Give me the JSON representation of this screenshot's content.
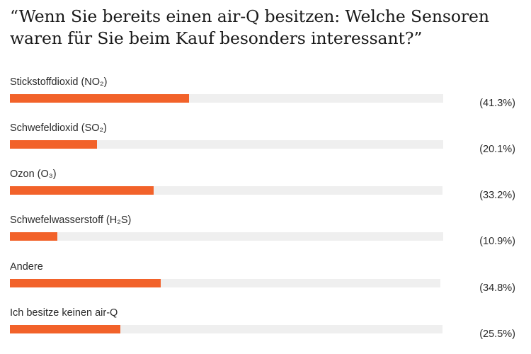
{
  "chart_data": {
    "type": "bar",
    "title": "“Wenn Sie bereits einen air-Q besitzen: Welche Sensoren waren für Sie beim Kauf besonders interessant?”",
    "categories": [
      "Stickstoffdioxid (NO₂)",
      "Schwefeldioxid (SO₂)",
      "Ozon (O₃)",
      "Schwefelwasserstoff (H₂S)",
      "Andere",
      "Ich besitze keinen air-Q"
    ],
    "values": [
      41.3,
      20.1,
      33.2,
      10.9,
      34.8,
      25.5
    ],
    "value_labels": [
      "(41.3%)",
      "(20.1%)",
      "(33.2%)",
      "(10.9%)",
      "(34.8%)",
      "(25.5%)"
    ],
    "xlim": [
      0,
      100
    ],
    "orientation": "horizontal",
    "grid": false,
    "legend": "none"
  },
  "colors": {
    "bar": "#f2622a",
    "track": "#efefef",
    "text": "#2a2a2a"
  }
}
